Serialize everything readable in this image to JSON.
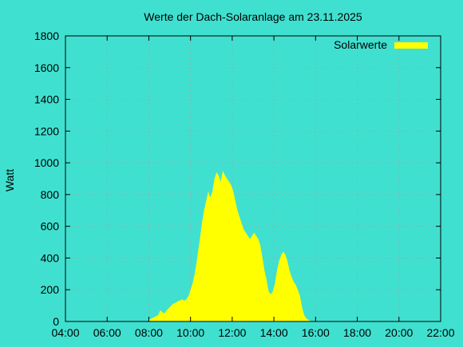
{
  "colors": {
    "background": "#40e0d0",
    "series": "#ffff00",
    "grid": "#a0a0a0",
    "axis": "#000000"
  },
  "chart_data": {
    "type": "area",
    "title": "Werte der Dach-Solaranlage am 23.11.2025",
    "xlabel": "",
    "ylabel": "Watt",
    "x_unit": "time of day (hours)",
    "xlim": [
      4,
      22
    ],
    "ylim": [
      0,
      1800
    ],
    "x_ticks": [
      {
        "v": 4,
        "label": "04:00"
      },
      {
        "v": 6,
        "label": "06:00"
      },
      {
        "v": 8,
        "label": "08:00"
      },
      {
        "v": 10,
        "label": "10:00"
      },
      {
        "v": 12,
        "label": "12:00"
      },
      {
        "v": 14,
        "label": "14:00"
      },
      {
        "v": 16,
        "label": "16:00"
      },
      {
        "v": 18,
        "label": "18:00"
      },
      {
        "v": 20,
        "label": "20:00"
      },
      {
        "v": 22,
        "label": "22:00"
      }
    ],
    "y_ticks": [
      {
        "v": 0,
        "label": "0"
      },
      {
        "v": 200,
        "label": "200"
      },
      {
        "v": 400,
        "label": "400"
      },
      {
        "v": 600,
        "label": "600"
      },
      {
        "v": 800,
        "label": "800"
      },
      {
        "v": 1000,
        "label": "1000"
      },
      {
        "v": 1200,
        "label": "1200"
      },
      {
        "v": 1400,
        "label": "1400"
      },
      {
        "v": 1600,
        "label": "1600"
      },
      {
        "v": 1800,
        "label": "1800"
      }
    ],
    "grid": true,
    "legend": {
      "position": "top-right"
    },
    "series": [
      {
        "name": "Solarwerte",
        "x": [
          8.0,
          8.15,
          8.3,
          8.45,
          8.55,
          8.65,
          8.75,
          8.85,
          9.0,
          9.15,
          9.3,
          9.45,
          9.6,
          9.7,
          9.8,
          9.9,
          10.0,
          10.1,
          10.2,
          10.3,
          10.35,
          10.45,
          10.55,
          10.65,
          10.75,
          10.85,
          10.95,
          11.05,
          11.15,
          11.25,
          11.35,
          11.45,
          11.55,
          11.65,
          11.75,
          11.85,
          11.95,
          12.05,
          12.15,
          12.25,
          12.35,
          12.45,
          12.55,
          12.65,
          12.75,
          12.85,
          12.95,
          13.05,
          13.15,
          13.25,
          13.35,
          13.45,
          13.55,
          13.65,
          13.75,
          13.85,
          13.95,
          14.05,
          14.15,
          14.25,
          14.35,
          14.45,
          14.55,
          14.65,
          14.75,
          14.85,
          14.95,
          15.05,
          15.15,
          15.25,
          15.35,
          15.45,
          15.55,
          15.65,
          15.8
        ],
        "values": [
          10,
          20,
          30,
          40,
          70,
          60,
          50,
          70,
          90,
          110,
          120,
          130,
          140,
          130,
          140,
          160,
          200,
          240,
          300,
          380,
          430,
          520,
          620,
          700,
          760,
          820,
          780,
          820,
          900,
          940,
          920,
          880,
          950,
          920,
          900,
          880,
          860,
          820,
          760,
          700,
          660,
          620,
          580,
          560,
          540,
          520,
          540,
          560,
          540,
          520,
          480,
          400,
          320,
          260,
          190,
          170,
          190,
          240,
          320,
          380,
          420,
          440,
          420,
          380,
          320,
          280,
          250,
          230,
          200,
          160,
          90,
          40,
          20,
          10,
          0
        ]
      }
    ]
  }
}
